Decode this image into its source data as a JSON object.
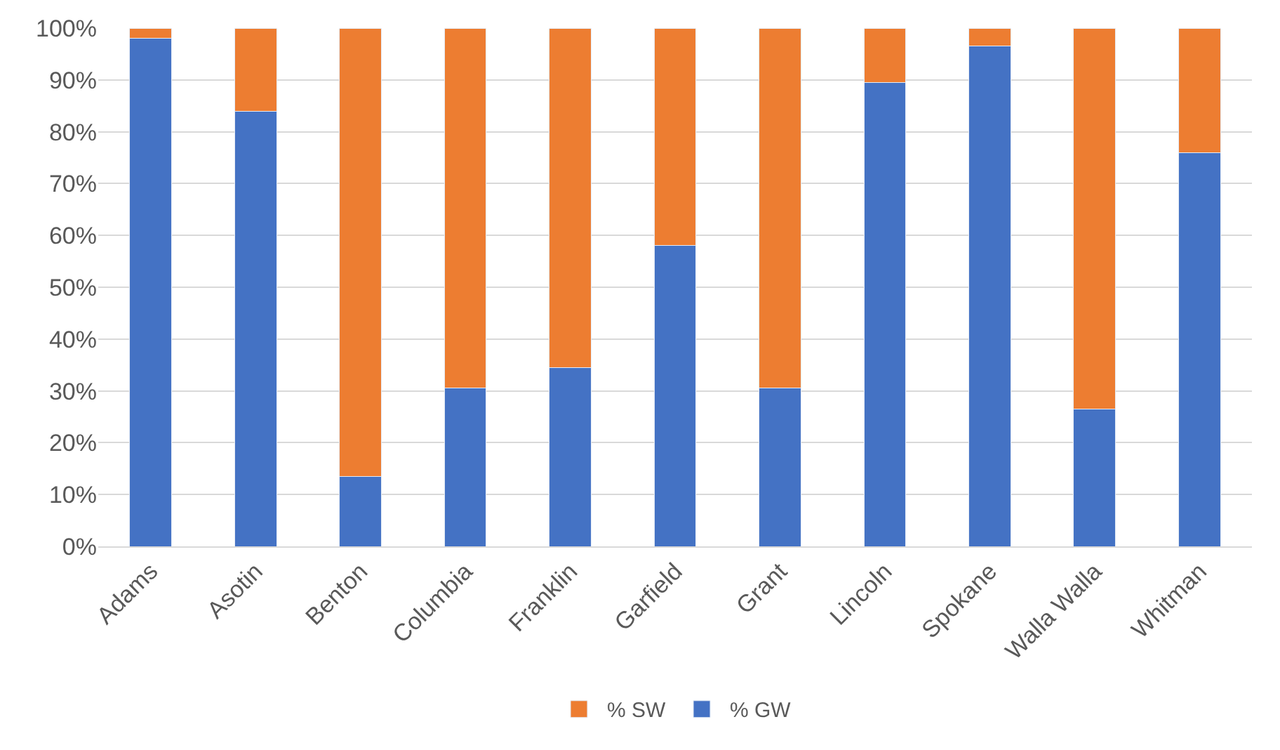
{
  "chart_data": {
    "type": "bar",
    "stacked": true,
    "categories": [
      "Adams",
      "Asotin",
      "Benton",
      "Columbia",
      "Franklin",
      "Garfield",
      "Grant",
      "Lincoln",
      "Spokane",
      "Walla Walla",
      "Whitman"
    ],
    "series": [
      {
        "name": "% GW",
        "color": "#4472c4",
        "values": [
          98,
          84,
          13.5,
          30.5,
          34.5,
          58,
          30.5,
          89.5,
          96.5,
          26.5,
          76
        ]
      },
      {
        "name": "% SW",
        "color": "#ed7d31",
        "values": [
          2,
          16,
          86.5,
          69.5,
          65.5,
          42,
          69.5,
          10.5,
          3.5,
          73.5,
          24
        ]
      }
    ],
    "ylim": [
      0,
      100
    ],
    "yticks": [
      {
        "value": 0,
        "label": "0%"
      },
      {
        "value": 10,
        "label": "10%"
      },
      {
        "value": 20,
        "label": "20%"
      },
      {
        "value": 30,
        "label": "30%"
      },
      {
        "value": 40,
        "label": "40%"
      },
      {
        "value": 50,
        "label": "50%"
      },
      {
        "value": 60,
        "label": "60%"
      },
      {
        "value": 70,
        "label": "70%"
      },
      {
        "value": 80,
        "label": "80%"
      },
      {
        "value": 90,
        "label": "90%"
      },
      {
        "value": 100,
        "label": "100%"
      }
    ],
    "grid": "y",
    "legend": "bottom"
  }
}
